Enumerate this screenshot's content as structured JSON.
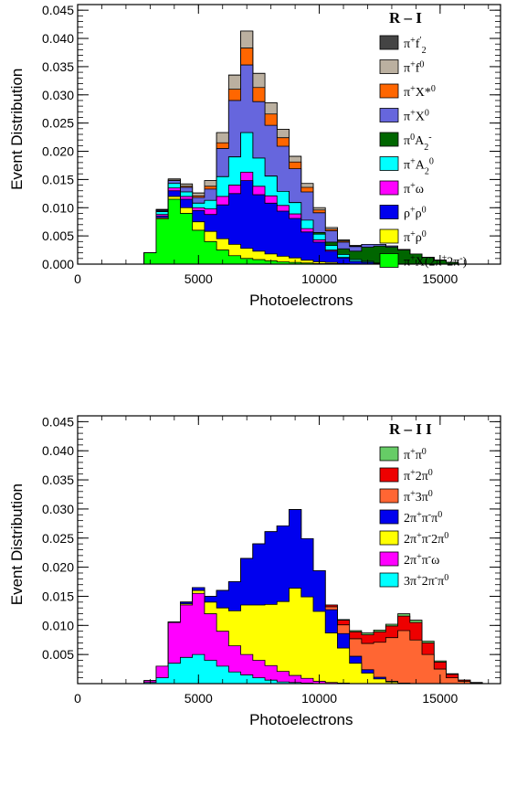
{
  "chart_data": [
    {
      "type": "area",
      "stacked": true,
      "legend_title": "R – I",
      "xlabel": "Photoelectrons",
      "ylabel": "Event Distribution",
      "xlim": [
        0,
        17500
      ],
      "ylim": [
        0,
        0.046
      ],
      "x_ticks": [
        0,
        5000,
        10000,
        15000
      ],
      "x_tick_labels": [
        "0",
        "5000",
        "10000",
        "15000"
      ],
      "y_ticks": [
        0.0,
        0.005,
        0.01,
        0.015,
        0.02,
        0.025,
        0.03,
        0.035,
        0.04,
        0.045
      ],
      "y_tick_labels": [
        "0.000",
        "0.005",
        "0.010",
        "0.015",
        "0.020",
        "0.025",
        "0.030",
        "0.035",
        "0.040",
        "0.045"
      ],
      "legend_position": "top-right",
      "x": [
        2500,
        3000,
        3500,
        4000,
        4500,
        5000,
        5500,
        6000,
        6500,
        7000,
        7500,
        8000,
        8500,
        9000,
        9500,
        10000,
        10500,
        11000,
        11500,
        12000,
        12500,
        13000,
        13500,
        14000,
        14500,
        15000,
        15500,
        16000
      ],
      "series": [
        {
          "name": "π⁺X(2π⁺2π⁻)",
          "color": "#00ff00",
          "values": [
            0.0,
            0.002,
            0.008,
            0.0115,
            0.009,
            0.006,
            0.004,
            0.0025,
            0.0015,
            0.001,
            0.0008,
            0.0006,
            0.0004,
            0.0003,
            0.0002,
            0.0001,
            0.0001,
            0.0,
            0.0,
            0.0,
            0.0,
            0.0,
            0.0,
            0.0,
            0.0,
            0.0,
            0.0,
            0.0
          ]
        },
        {
          "name": "π⁺ρ⁰",
          "color": "#ffff00",
          "values": [
            0.0,
            0.0,
            0.0002,
            0.0005,
            0.001,
            0.0015,
            0.0018,
            0.002,
            0.002,
            0.0018,
            0.0015,
            0.0012,
            0.001,
            0.0008,
            0.0005,
            0.0003,
            0.0002,
            0.0001,
            0.0,
            0.0,
            0.0,
            0.0,
            0.0,
            0.0,
            0.0,
            0.0,
            0.0,
            0.0
          ]
        },
        {
          "name": "ρ⁺ρ⁰",
          "color": "#0000ee",
          "values": [
            0.0,
            0.0,
            0.0003,
            0.001,
            0.0015,
            0.002,
            0.003,
            0.006,
            0.009,
            0.012,
            0.01,
            0.009,
            0.008,
            0.007,
            0.005,
            0.0035,
            0.002,
            0.001,
            0.0005,
            0.0003,
            0.0001,
            0.0,
            0.0,
            0.0,
            0.0,
            0.0,
            0.0,
            0.0
          ]
        },
        {
          "name": "π⁺ω",
          "color": "#ff00ff",
          "values": [
            0.0,
            0.0,
            0.0003,
            0.0005,
            0.0005,
            0.0005,
            0.001,
            0.0015,
            0.0015,
            0.0015,
            0.0015,
            0.0013,
            0.001,
            0.0008,
            0.0006,
            0.0004,
            0.0002,
            0.0001,
            0.0,
            0.0,
            0.0,
            0.0,
            0.0,
            0.0,
            0.0,
            0.0,
            0.0,
            0.0
          ]
        },
        {
          "name": "π⁺A₂⁰",
          "color": "#00ffff",
          "values": [
            0.0,
            0.0,
            0.0005,
            0.0008,
            0.0008,
            0.0008,
            0.0015,
            0.0035,
            0.005,
            0.007,
            0.005,
            0.0035,
            0.0025,
            0.002,
            0.0015,
            0.001,
            0.0008,
            0.0005,
            0.0003,
            0.0002,
            0.0001,
            0.0,
            0.0,
            0.0,
            0.0,
            0.0,
            0.0,
            0.0
          ]
        },
        {
          "name": "π⁰A₂⁻",
          "color": "#006600",
          "values": [
            0.0,
            0.0,
            0.0,
            0.0,
            0.0,
            0.0,
            0.0,
            0.0,
            0.0,
            0.0,
            0.0,
            0.0,
            0.0,
            0.0,
            0.0,
            0.0003,
            0.0006,
            0.001,
            0.0015,
            0.0025,
            0.003,
            0.003,
            0.0025,
            0.0018,
            0.0012,
            0.0007,
            0.0003,
            0.0
          ]
        },
        {
          "name": "π⁺X⁰",
          "color": "#6666dd",
          "values": [
            0.0,
            0.0,
            0.0002,
            0.0005,
            0.0008,
            0.001,
            0.002,
            0.005,
            0.01,
            0.012,
            0.01,
            0.009,
            0.008,
            0.006,
            0.005,
            0.0035,
            0.002,
            0.0012,
            0.0008,
            0.0005,
            0.0003,
            0.0002,
            0.0001,
            0.0,
            0.0,
            0.0,
            0.0,
            0.0
          ]
        },
        {
          "name": "π⁺X*⁰",
          "color": "#ff6600",
          "values": [
            0.0,
            0.0,
            0.0001,
            0.0001,
            0.0002,
            0.0003,
            0.0005,
            0.001,
            0.002,
            0.003,
            0.0025,
            0.002,
            0.0015,
            0.0012,
            0.0008,
            0.0005,
            0.0003,
            0.0002,
            0.0001,
            0.0,
            0.0,
            0.0,
            0.0,
            0.0,
            0.0,
            0.0,
            0.0,
            0.0
          ]
        },
        {
          "name": "π⁺f⁰",
          "color": "#bbb0a0",
          "values": [
            0.0,
            0.0,
            0.0001,
            0.0002,
            0.0004,
            0.0005,
            0.001,
            0.0018,
            0.0025,
            0.003,
            0.0025,
            0.002,
            0.0015,
            0.001,
            0.0007,
            0.0004,
            0.0003,
            0.0002,
            0.0001,
            0.0,
            0.0,
            0.0,
            0.0,
            0.0,
            0.0,
            0.0,
            0.0,
            0.0
          ]
        },
        {
          "name": "π⁺f′₂",
          "color": "#444444",
          "values": [
            0.0,
            0.0,
            0.0,
            0.0,
            0.0,
            0.0,
            0.0,
            0.0,
            0.0,
            0.0,
            0.0,
            0.0,
            0.0,
            0.0,
            0.0,
            0.0,
            0.0,
            0.0,
            0.0,
            0.0,
            0.0,
            0.0,
            0.0,
            0.0,
            0.0,
            0.0,
            0.0,
            0.0
          ]
        }
      ]
    },
    {
      "type": "area",
      "stacked": true,
      "legend_title": "R – I I",
      "xlabel": "Photoelectrons",
      "ylabel": "Event Distribution",
      "xlim": [
        0,
        17500
      ],
      "ylim": [
        0,
        0.046
      ],
      "x_ticks": [
        0,
        5000,
        10000,
        15000
      ],
      "x_tick_labels": [
        "0",
        "5000",
        "10000",
        "15000"
      ],
      "y_ticks": [
        0.005,
        0.01,
        0.015,
        0.02,
        0.025,
        0.03,
        0.035,
        0.04,
        0.045
      ],
      "y_tick_labels": [
        "0.005",
        "0.010",
        "0.015",
        "0.020",
        "0.025",
        "0.030",
        "0.035",
        "0.040",
        "0.045"
      ],
      "legend_position": "top-right",
      "x": [
        2500,
        3000,
        3500,
        4000,
        4500,
        5000,
        5500,
        6000,
        6500,
        7000,
        7500,
        8000,
        8500,
        9000,
        9500,
        10000,
        10500,
        11000,
        11500,
        12000,
        12500,
        13000,
        13500,
        14000,
        14500,
        15000,
        15500,
        16000,
        16500,
        17000
      ],
      "series": [
        {
          "name": "3π⁺2π⁻π⁰",
          "color": "#00ffff",
          "values": [
            0.0,
            0.0002,
            0.001,
            0.0035,
            0.0045,
            0.005,
            0.004,
            0.003,
            0.002,
            0.0015,
            0.001,
            0.0006,
            0.0003,
            0.0002,
            0.0001,
            0.0,
            0.0,
            0.0,
            0.0,
            0.0,
            0.0,
            0.0,
            0.0,
            0.0,
            0.0,
            0.0,
            0.0,
            0.0,
            0.0,
            0.0
          ]
        },
        {
          "name": "2π⁺π⁻ω",
          "color": "#ff00ff",
          "values": [
            0.0,
            0.0003,
            0.002,
            0.007,
            0.009,
            0.0105,
            0.008,
            0.006,
            0.0045,
            0.0035,
            0.003,
            0.0025,
            0.0018,
            0.0012,
            0.0008,
            0.0004,
            0.0002,
            0.0001,
            0.0,
            0.0,
            0.0,
            0.0,
            0.0,
            0.0,
            0.0,
            0.0,
            0.0,
            0.0,
            0.0,
            0.0
          ]
        },
        {
          "name": "2π⁺π⁻2π⁰",
          "color": "#ffff00",
          "values": [
            0.0,
            0.0,
            0.0,
            0.0,
            0.0002,
            0.0005,
            0.002,
            0.004,
            0.006,
            0.0085,
            0.0095,
            0.0105,
            0.012,
            0.015,
            0.014,
            0.012,
            0.0085,
            0.006,
            0.0035,
            0.0018,
            0.0008,
            0.0003,
            0.0001,
            0.0,
            0.0,
            0.0,
            0.0,
            0.0,
            0.0,
            0.0
          ]
        },
        {
          "name": "2π⁺π⁻π⁰",
          "color": "#0000ee",
          "values": [
            0.0,
            0.0,
            0.0,
            0.0001,
            0.0003,
            0.0005,
            0.001,
            0.003,
            0.005,
            0.008,
            0.0105,
            0.0125,
            0.013,
            0.0135,
            0.01,
            0.007,
            0.004,
            0.0025,
            0.0012,
            0.0006,
            0.0003,
            0.0001,
            0.0,
            0.0,
            0.0,
            0.0,
            0.0,
            0.0,
            0.0,
            0.0
          ]
        },
        {
          "name": "π⁺3π⁰",
          "color": "#ff6633",
          "values": [
            0.0,
            0.0,
            0.0,
            0.0,
            0.0,
            0.0,
            0.0,
            0.0,
            0.0,
            0.0,
            0.0,
            0.0,
            0.0,
            0.0,
            0.0,
            0.0,
            0.0005,
            0.0015,
            0.003,
            0.0045,
            0.006,
            0.0075,
            0.009,
            0.0075,
            0.005,
            0.0025,
            0.001,
            0.0004,
            0.0001,
            0.0
          ]
        },
        {
          "name": "π⁺2π⁰",
          "color": "#ee0000",
          "values": [
            0.0,
            0.0,
            0.0,
            0.0,
            0.0,
            0.0,
            0.0,
            0.0,
            0.0,
            0.0,
            0.0,
            0.0,
            0.0,
            0.0,
            0.0,
            0.0,
            0.0003,
            0.0008,
            0.0012,
            0.0015,
            0.0018,
            0.002,
            0.0025,
            0.003,
            0.002,
            0.0012,
            0.0006,
            0.0002,
            0.0001,
            0.0
          ]
        },
        {
          "name": "π⁺π⁰",
          "color": "#66cc66",
          "values": [
            0.0,
            0.0,
            0.0,
            0.0,
            0.0,
            0.0,
            0.0,
            0.0,
            0.0,
            0.0,
            0.0,
            0.0,
            0.0,
            0.0,
            0.0,
            0.0,
            0.0,
            0.0001,
            0.0002,
            0.0003,
            0.0003,
            0.0003,
            0.0004,
            0.0004,
            0.0003,
            0.0002,
            0.0001,
            0.0,
            0.0,
            0.0
          ]
        }
      ]
    }
  ]
}
